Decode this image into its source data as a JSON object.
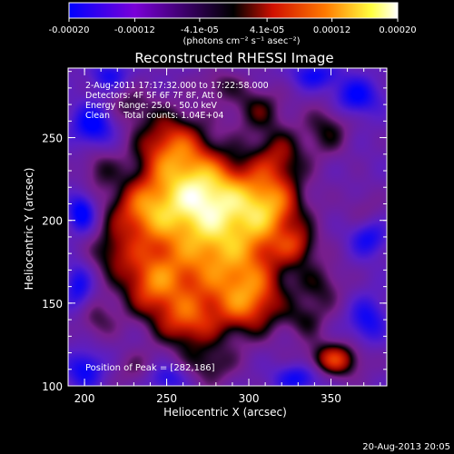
{
  "colorbar": {
    "ticks": [
      "-0.00020",
      "-0.00012",
      "-4.1e-05",
      "4.1e-05",
      "0.00012",
      "0.00020"
    ],
    "tick_values": [
      -0.0002,
      -0.00012,
      -4.1e-05,
      4.1e-05,
      0.00012,
      0.0002
    ],
    "range": [
      -0.0002,
      0.0002
    ],
    "unit_label": "(photons cm⁻² s⁻¹ asec⁻²)",
    "colors": [
      "#0000ff",
      "#7a00d8",
      "#000000",
      "#d01000",
      "#ff7a00",
      "#ffff40",
      "#ffffff"
    ]
  },
  "chart_data": {
    "type": "heatmap",
    "title": "Reconstructed RHESSI Image",
    "xlabel": "Heliocentric X (arcsec)",
    "ylabel": "Heliocentric Y (arcsec)",
    "xlim": [
      190,
      384
    ],
    "ylim": [
      100,
      292
    ],
    "x_ticks": [
      200,
      250,
      300,
      350
    ],
    "y_ticks": [
      100,
      150,
      200,
      250
    ],
    "x_tick_labels": [
      "200",
      "250",
      "300",
      "350"
    ],
    "y_tick_labels": [
      "100",
      "150",
      "200",
      "250"
    ],
    "info_lines": [
      "2-Aug-2011 17:17:32.000 to 17:22:58.000",
      "Detectors: 4F 5F 6F 7F 8F, Att 0",
      "Energy Range: 25.0 - 50.0 keV",
      "Clean     Total counts: 1.04E+04"
    ],
    "peak_label": "Position of Peak = [282,186]",
    "peak": {
      "x": 282,
      "y": 186
    },
    "blobs": [
      {
        "x": 282,
        "y": 186,
        "sx": 30,
        "sy": 28,
        "a": 1.0
      },
      {
        "x": 272,
        "y": 218,
        "sx": 18,
        "sy": 16,
        "a": 0.75
      },
      {
        "x": 252,
        "y": 245,
        "sx": 16,
        "sy": 16,
        "a": 0.7
      },
      {
        "x": 235,
        "y": 206,
        "sx": 16,
        "sy": 14,
        "a": 0.65
      },
      {
        "x": 240,
        "y": 162,
        "sx": 14,
        "sy": 14,
        "a": 0.6
      },
      {
        "x": 262,
        "y": 138,
        "sx": 14,
        "sy": 12,
        "a": 0.55
      },
      {
        "x": 300,
        "y": 150,
        "sx": 14,
        "sy": 14,
        "a": 0.55
      },
      {
        "x": 312,
        "y": 210,
        "sx": 14,
        "sy": 14,
        "a": 0.6
      },
      {
        "x": 318,
        "y": 240,
        "sx": 12,
        "sy": 12,
        "a": 0.45
      },
      {
        "x": 305,
        "y": 268,
        "sx": 12,
        "sy": 10,
        "a": 0.4
      },
      {
        "x": 216,
        "y": 180,
        "sx": 10,
        "sy": 10,
        "a": 0.35
      },
      {
        "x": 348,
        "y": 256,
        "sx": 10,
        "sy": 12,
        "a": 0.4
      },
      {
        "x": 352,
        "y": 116,
        "sx": 12,
        "sy": 8,
        "a": 0.7
      },
      {
        "x": 345,
        "y": 160,
        "sx": 10,
        "sy": 10,
        "a": 0.3
      },
      {
        "x": 276,
        "y": 112,
        "sx": 12,
        "sy": 9,
        "a": 0.35
      },
      {
        "x": 207,
        "y": 140,
        "sx": 9,
        "sy": 9,
        "a": 0.3
      },
      {
        "x": 230,
        "y": 110,
        "sx": 10,
        "sy": 8,
        "a": 0.25
      },
      {
        "x": 370,
        "y": 205,
        "sx": 8,
        "sy": 10,
        "a": 0.22
      },
      {
        "x": 226,
        "y": 270,
        "sx": 10,
        "sy": 8,
        "a": 0.3
      },
      {
        "x": 208,
        "y": 232,
        "sx": 8,
        "sy": 9,
        "a": 0.3
      },
      {
        "x": 330,
        "y": 185,
        "sx": 8,
        "sy": 8,
        "a": 0.35
      },
      {
        "x": 335,
        "y": 140,
        "sx": 9,
        "sy": 8,
        "a": 0.3
      },
      {
        "x": 282,
        "y": 282,
        "sx": 10,
        "sy": 7,
        "a": 0.3
      },
      {
        "x": 198,
        "y": 205,
        "sx": 6,
        "sy": 8,
        "a": -0.7
      },
      {
        "x": 205,
        "y": 258,
        "sx": 9,
        "sy": 9,
        "a": -0.65
      },
      {
        "x": 365,
        "y": 275,
        "sx": 10,
        "sy": 8,
        "a": -0.6
      },
      {
        "x": 372,
        "y": 190,
        "sx": 8,
        "sy": 8,
        "a": -0.55
      },
      {
        "x": 330,
        "y": 105,
        "sx": 10,
        "sy": 6,
        "a": -0.55
      },
      {
        "x": 200,
        "y": 110,
        "sx": 8,
        "sy": 8,
        "a": -0.55
      },
      {
        "x": 372,
        "y": 140,
        "sx": 8,
        "sy": 10,
        "a": -0.5
      },
      {
        "x": 250,
        "y": 105,
        "sx": 9,
        "sy": 6,
        "a": -0.45
      },
      {
        "x": 340,
        "y": 288,
        "sx": 10,
        "sy": 6,
        "a": -0.5
      },
      {
        "x": 215,
        "y": 288,
        "sx": 8,
        "sy": 6,
        "a": -0.45
      },
      {
        "x": 196,
        "y": 160,
        "sx": 6,
        "sy": 10,
        "a": -0.5
      }
    ]
  },
  "footer": {
    "timestamp": "20-Aug-2013 20:05"
  }
}
